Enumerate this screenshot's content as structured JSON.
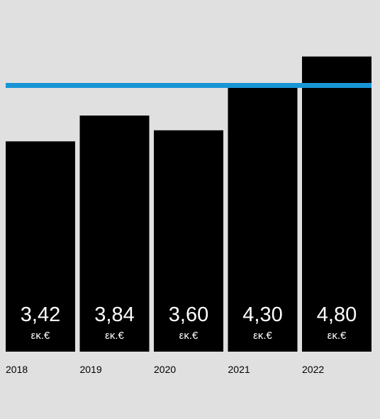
{
  "chart_data": {
    "type": "bar",
    "categories": [
      "2018",
      "2019",
      "2020",
      "2021",
      "2022"
    ],
    "values": [
      3.42,
      3.84,
      3.6,
      4.3,
      4.8
    ],
    "value_labels": [
      "3,42",
      "3,84",
      "3,60",
      "4,30",
      "4,80"
    ],
    "unit_label": "εκ.€",
    "reference_line": {
      "value": 4.33,
      "color": "#1a95d6"
    },
    "ylim": [
      0,
      5.5
    ],
    "grid": false,
    "bar_color": "#000000",
    "background": "#e0e0e0"
  }
}
